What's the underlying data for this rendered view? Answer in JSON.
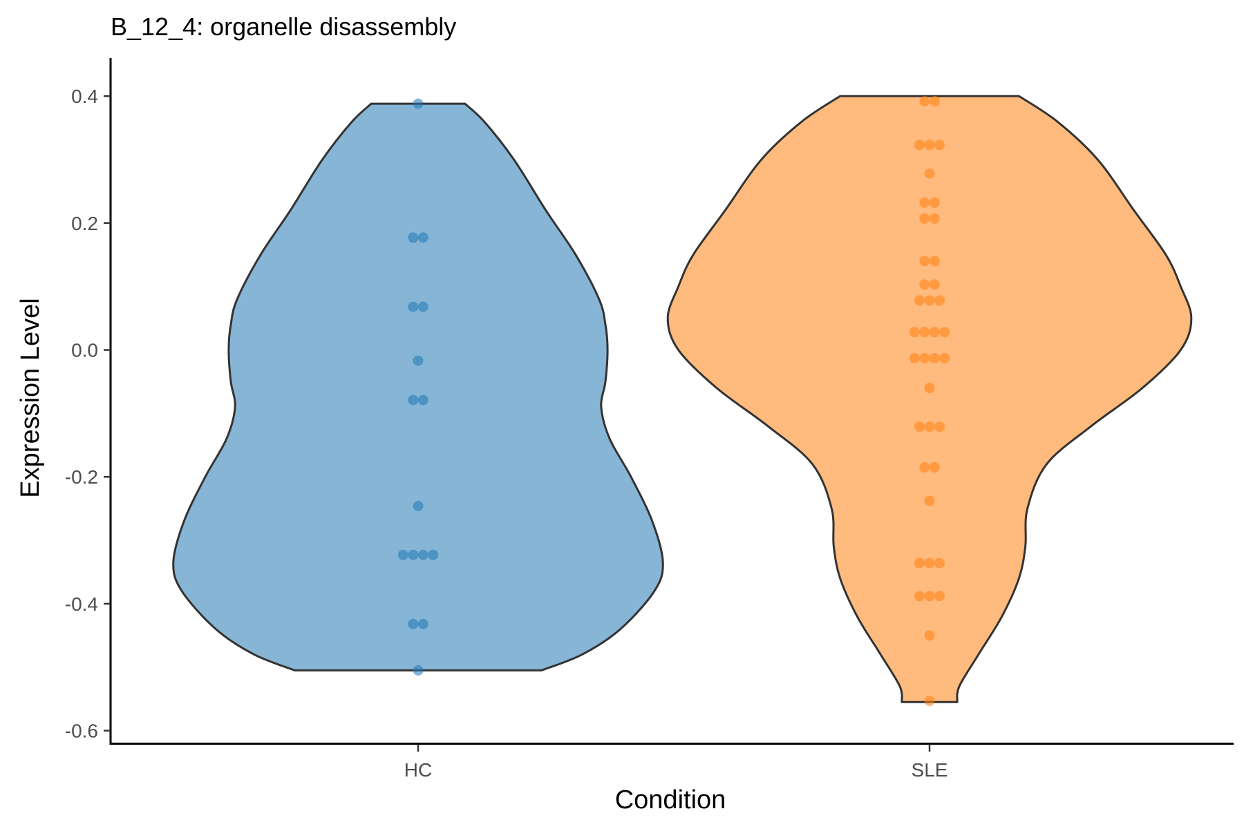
{
  "chart_data": {
    "type": "violin",
    "title": "B_12_4: organelle disassembly",
    "xlabel": "Condition",
    "ylabel": "Expression Level",
    "ylim": [
      -0.62,
      0.46
    ],
    "yticks": [
      {
        "value": 0.4,
        "label": "0.4"
      },
      {
        "value": 0.2,
        "label": "0.2"
      },
      {
        "value": 0.0,
        "label": "0.0"
      },
      {
        "value": -0.2,
        "label": "-0.2"
      },
      {
        "value": -0.4,
        "label": "-0.4"
      },
      {
        "value": -0.6,
        "label": "-0.6"
      }
    ],
    "grid": false,
    "series": [
      {
        "name": "HC",
        "fill": "#1F77B4",
        "fill_opacity": 0.54,
        "point_color": "#1F77B4",
        "range": [
          -0.505,
          0.388
        ],
        "density": [
          [
            0.388,
            0.22
          ],
          [
            0.36,
            0.31
          ],
          [
            0.3,
            0.45
          ],
          [
            0.22,
            0.6
          ],
          [
            0.15,
            0.74
          ],
          [
            0.08,
            0.85
          ],
          [
            0.04,
            0.88
          ],
          [
            0.0,
            0.89
          ],
          [
            -0.05,
            0.88
          ],
          [
            -0.09,
            0.86
          ],
          [
            -0.14,
            0.9
          ],
          [
            -0.2,
            1.0
          ],
          [
            -0.27,
            1.1
          ],
          [
            -0.335,
            1.15
          ],
          [
            -0.38,
            1.11
          ],
          [
            -0.44,
            0.95
          ],
          [
            -0.48,
            0.77
          ],
          [
            -0.505,
            0.58
          ]
        ],
        "points": [
          {
            "y": 0.388,
            "n": 1
          },
          {
            "y": 0.177,
            "n": 2
          },
          {
            "y": 0.068,
            "n": 2
          },
          {
            "y": -0.017,
            "n": 1
          },
          {
            "y": -0.079,
            "n": 2
          },
          {
            "y": -0.246,
            "n": 1
          },
          {
            "y": -0.323,
            "n": 4
          },
          {
            "y": -0.432,
            "n": 2
          },
          {
            "y": -0.505,
            "n": 1
          }
        ]
      },
      {
        "name": "SLE",
        "fill": "#FF7F0E",
        "fill_opacity": 0.54,
        "point_color": "#FF7F0E",
        "range": [
          -0.555,
          0.4
        ],
        "density": [
          [
            0.4,
            0.42
          ],
          [
            0.36,
            0.6
          ],
          [
            0.3,
            0.79
          ],
          [
            0.22,
            0.96
          ],
          [
            0.15,
            1.11
          ],
          [
            0.1,
            1.18
          ],
          [
            0.05,
            1.23
          ],
          [
            0.0,
            1.18
          ],
          [
            -0.06,
            1.0
          ],
          [
            -0.12,
            0.76
          ],
          [
            -0.18,
            0.55
          ],
          [
            -0.25,
            0.46
          ],
          [
            -0.31,
            0.45
          ],
          [
            -0.36,
            0.42
          ],
          [
            -0.42,
            0.34
          ],
          [
            -0.48,
            0.23
          ],
          [
            -0.53,
            0.14
          ],
          [
            -0.555,
            0.13
          ]
        ],
        "points": [
          {
            "y": 0.392,
            "n": 2
          },
          {
            "y": 0.323,
            "n": 3
          },
          {
            "y": 0.278,
            "n": 1
          },
          {
            "y": 0.232,
            "n": 2
          },
          {
            "y": 0.207,
            "n": 2
          },
          {
            "y": 0.14,
            "n": 2
          },
          {
            "y": 0.103,
            "n": 2
          },
          {
            "y": 0.078,
            "n": 3
          },
          {
            "y": 0.028,
            "n": 4
          },
          {
            "y": -0.013,
            "n": 4
          },
          {
            "y": -0.06,
            "n": 1
          },
          {
            "y": -0.121,
            "n": 3
          },
          {
            "y": -0.185,
            "n": 2
          },
          {
            "y": -0.238,
            "n": 1
          },
          {
            "y": -0.336,
            "n": 3
          },
          {
            "y": -0.388,
            "n": 3
          },
          {
            "y": -0.45,
            "n": 1
          },
          {
            "y": -0.553,
            "n": 1
          }
        ]
      }
    ]
  }
}
